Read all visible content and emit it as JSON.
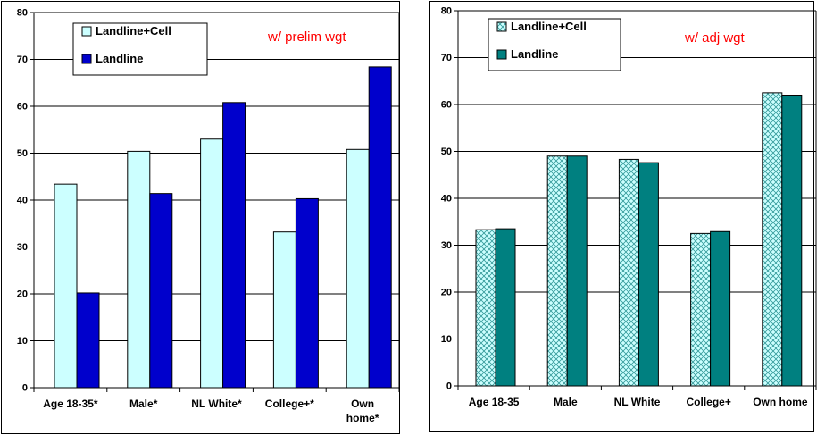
{
  "colors": {
    "landline_cell_left": "#ccffff",
    "landline_left": "#0000cc",
    "landline_cell_right_base": "#ccffff",
    "landline_cell_right_hatch": "#339999",
    "landline_right": "#008080",
    "note_text": "#ff0000"
  },
  "chart_data": [
    {
      "type": "bar",
      "title": "",
      "xlabel": "",
      "ylabel": "",
      "ylim": [
        0,
        80
      ],
      "yticks": [
        0,
        10,
        20,
        30,
        40,
        50,
        60,
        70,
        80
      ],
      "grid": true,
      "legend_position": "top-left",
      "annotation": "w/ prelim wgt",
      "categories": [
        "Age 18-35*",
        "Male*",
        "NL White*",
        "College+*",
        "Own home*"
      ],
      "category_lines": [
        [
          "Age 18-35*"
        ],
        [
          "Male*"
        ],
        [
          "NL White*"
        ],
        [
          "College+*"
        ],
        [
          "Own",
          "home*"
        ]
      ],
      "series": [
        {
          "name": "Landline+Cell",
          "values": [
            43.4,
            50.4,
            53.0,
            33.2,
            50.8
          ]
        },
        {
          "name": "Landline",
          "values": [
            20.2,
            41.4,
            60.8,
            40.3,
            68.4
          ]
        }
      ]
    },
    {
      "type": "bar",
      "title": "",
      "xlabel": "",
      "ylabel": "",
      "ylim": [
        0,
        80
      ],
      "yticks": [
        0,
        10,
        20,
        30,
        40,
        50,
        60,
        70,
        80
      ],
      "grid": true,
      "legend_position": "top-left",
      "annotation": "w/ adj wgt",
      "categories": [
        "Age 18-35",
        "Male",
        "NL White",
        "College+",
        "Own home"
      ],
      "category_lines": [
        [
          "Age 18-35"
        ],
        [
          "Male"
        ],
        [
          "NL White"
        ],
        [
          "College+"
        ],
        [
          "Own home"
        ]
      ],
      "series": [
        {
          "name": "Landline+Cell",
          "values": [
            33.3,
            49.0,
            48.3,
            32.5,
            62.5
          ]
        },
        {
          "name": "Landline",
          "values": [
            33.5,
            49.0,
            47.6,
            32.9,
            62.0
          ]
        }
      ]
    }
  ]
}
